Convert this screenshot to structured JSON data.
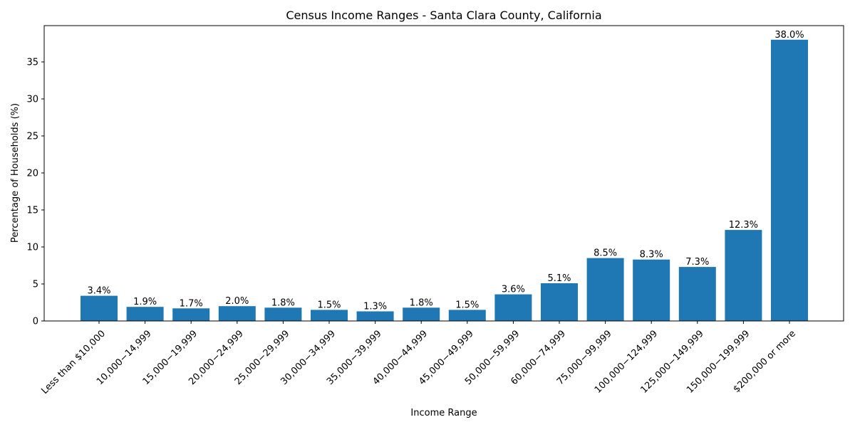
{
  "chart_data": {
    "type": "bar",
    "title": "Census Income Ranges - Santa Clara County, California",
    "xlabel": "Income Range",
    "ylabel": "Percentage of Households (%)",
    "ylim": [
      0,
      39.9
    ],
    "yticks": [
      0,
      5,
      10,
      15,
      20,
      25,
      30,
      35
    ],
    "grid": false,
    "bar_color": "#1f77b4",
    "categories": [
      "Less than $10,000",
      "10,000−14,999",
      "15,000−19,999",
      "20,000−24,999",
      "25,000−29,999",
      "30,000−34,999",
      "35,000−39,999",
      "40,000−44,999",
      "45,000−49,999",
      "50,000−59,999",
      "60,000−74,999",
      "75,000−99,999",
      "100,000−124,999",
      "125,000−149,999",
      "150,000−199,999",
      "$200,000 or more"
    ],
    "values": [
      3.4,
      1.9,
      1.7,
      2.0,
      1.8,
      1.5,
      1.3,
      1.8,
      1.5,
      3.6,
      5.1,
      8.5,
      8.3,
      7.3,
      12.3,
      38.0
    ],
    "data_labels": [
      "3.4%",
      "1.9%",
      "1.7%",
      "2.0%",
      "1.8%",
      "1.5%",
      "1.3%",
      "1.8%",
      "1.5%",
      "3.6%",
      "5.1%",
      "8.5%",
      "8.3%",
      "7.3%",
      "12.3%",
      "38.0%"
    ]
  }
}
